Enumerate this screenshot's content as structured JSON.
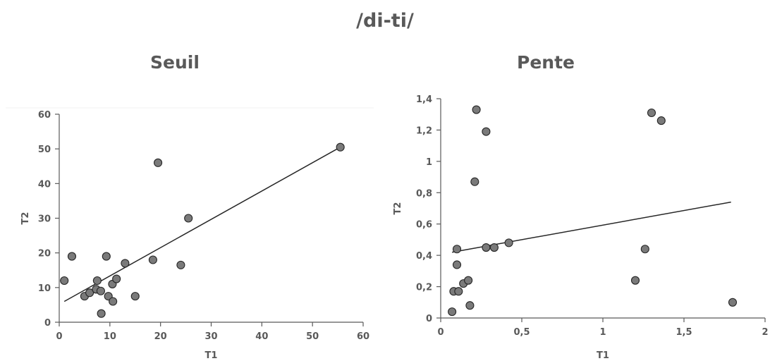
{
  "page": {
    "title": "/di-ti/"
  },
  "chart_data": [
    {
      "type": "scatter",
      "title": "Seuil",
      "xlabel": "T1",
      "ylabel": "T2",
      "xlim": [
        0,
        60
      ],
      "ylim": [
        0,
        60
      ],
      "x_ticks": [
        "0",
        "10",
        "20",
        "30",
        "40",
        "50",
        "60"
      ],
      "y_ticks": [
        "0",
        "10",
        "20",
        "30",
        "40",
        "50",
        "60"
      ],
      "grid": false,
      "legend": "none",
      "points": [
        {
          "x": 1,
          "y": 12
        },
        {
          "x": 2.5,
          "y": 19
        },
        {
          "x": 5,
          "y": 7.5
        },
        {
          "x": 6,
          "y": 8.5
        },
        {
          "x": 7.3,
          "y": 9.5
        },
        {
          "x": 7.5,
          "y": 12
        },
        {
          "x": 8.2,
          "y": 9
        },
        {
          "x": 8.3,
          "y": 2.5
        },
        {
          "x": 9.3,
          "y": 19
        },
        {
          "x": 9.7,
          "y": 7.5
        },
        {
          "x": 10.5,
          "y": 11
        },
        {
          "x": 10.6,
          "y": 6
        },
        {
          "x": 11.3,
          "y": 12.5
        },
        {
          "x": 13,
          "y": 17
        },
        {
          "x": 15,
          "y": 7.5
        },
        {
          "x": 18.5,
          "y": 18
        },
        {
          "x": 19.5,
          "y": 46
        },
        {
          "x": 24,
          "y": 16.5
        },
        {
          "x": 25.5,
          "y": 30
        },
        {
          "x": 55.5,
          "y": 50.5
        }
      ],
      "trendline": {
        "x": [
          1,
          55.5
        ],
        "y": [
          6,
          50.5
        ]
      }
    },
    {
      "type": "scatter",
      "title": "Pente",
      "xlabel": "T1",
      "ylabel": "T2",
      "xlim": [
        0,
        2
      ],
      "ylim": [
        0,
        1.4
      ],
      "x_ticks": [
        "0",
        "0,5",
        "1",
        "1,5",
        "2"
      ],
      "y_ticks": [
        "0",
        "0,2",
        "0,4",
        "0,6",
        "0,8",
        "1",
        "1,2",
        "1,4"
      ],
      "grid": false,
      "legend": "none",
      "points": [
        {
          "x": 0.07,
          "y": 0.04
        },
        {
          "x": 0.08,
          "y": 0.17
        },
        {
          "x": 0.1,
          "y": 0.44
        },
        {
          "x": 0.1,
          "y": 0.34
        },
        {
          "x": 0.11,
          "y": 0.17
        },
        {
          "x": 0.14,
          "y": 0.22
        },
        {
          "x": 0.17,
          "y": 0.24
        },
        {
          "x": 0.18,
          "y": 0.08
        },
        {
          "x": 0.21,
          "y": 0.87
        },
        {
          "x": 0.22,
          "y": 1.33
        },
        {
          "x": 0.28,
          "y": 1.19
        },
        {
          "x": 0.28,
          "y": 0.45
        },
        {
          "x": 0.33,
          "y": 0.45
        },
        {
          "x": 0.42,
          "y": 0.48
        },
        {
          "x": 1.2,
          "y": 0.24
        },
        {
          "x": 1.26,
          "y": 0.44
        },
        {
          "x": 1.3,
          "y": 1.31
        },
        {
          "x": 1.36,
          "y": 1.26
        },
        {
          "x": 1.8,
          "y": 0.1
        }
      ],
      "trendline": {
        "x": [
          0.07,
          1.79
        ],
        "y": [
          0.42,
          0.74
        ]
      }
    }
  ]
}
